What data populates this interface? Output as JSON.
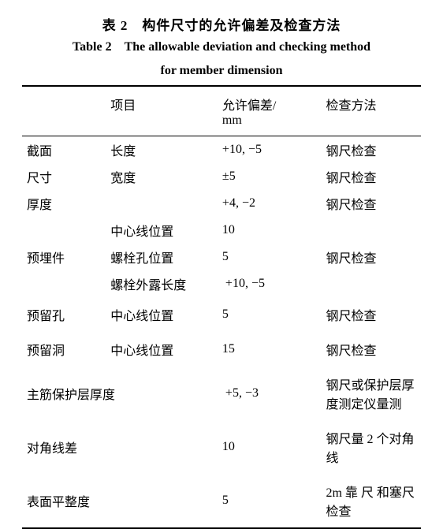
{
  "caption": {
    "zh": "表 2　构件尺寸的允许偏差及检查方法",
    "en_line1": "Table 2　The allowable deviation and checking method",
    "en_line2": "for member dimension"
  },
  "header": {
    "item": "项目",
    "deviation_line1": "允许偏差/",
    "deviation_line2": "mm",
    "method": "检查方法"
  },
  "rows": {
    "section_label": "截面",
    "size_label": "尺寸",
    "length_label": "长度",
    "length_dev": "+10, −5",
    "length_method": "钢尺检查",
    "width_label": "宽度",
    "width_dev": "±5",
    "width_method": "钢尺检查",
    "thickness_label": "厚度",
    "thickness_dev": "+4, −2",
    "thickness_method": "钢尺检查",
    "embed_label": "预埋件",
    "embed_center": "中心线位置",
    "embed_center_dev": "10",
    "embed_bolthole": "螺栓孔位置",
    "embed_bolthole_dev": "5",
    "embed_method": "钢尺检查",
    "embed_exposed": "螺栓外露长度",
    "embed_exposed_dev": "+10, −5",
    "reserve_hole_label": "预留孔",
    "reserve_hole_item": "中心线位置",
    "reserve_hole_dev": "5",
    "reserve_hole_method": "钢尺检查",
    "reserve_opening_label": "预留洞",
    "reserve_opening_item": "中心线位置",
    "reserve_opening_dev": "15",
    "reserve_opening_method": "钢尺检查",
    "rebar_cover_label": "主筋保护层厚度",
    "rebar_cover_dev": "+5, −3",
    "rebar_cover_method": "钢尺或保护层厚度测定仪量测",
    "diagonal_label": "对角线差",
    "diagonal_dev": "10",
    "diagonal_method": "钢尺量 2 个对角线",
    "flatness_label": "表面平整度",
    "flatness_dev": "5",
    "flatness_method": "2m 靠 尺 和塞尺检查"
  }
}
